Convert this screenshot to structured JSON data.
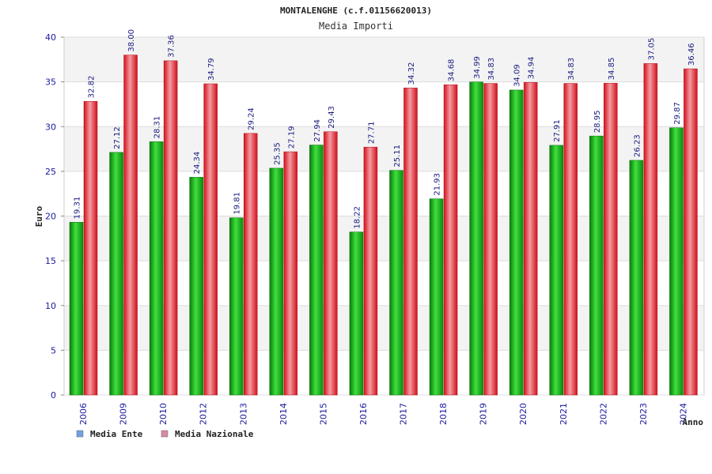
{
  "chart_data": {
    "type": "bar",
    "title": "MONTALENGHE (c.f.01156620013)",
    "subtitle": "Media Importi",
    "xlabel": "Anno",
    "ylabel": "Euro",
    "ylim": [
      0,
      40
    ],
    "yticks": [
      0,
      5,
      10,
      15,
      20,
      25,
      30,
      35,
      40
    ],
    "grid": true,
    "legend_position": "bottom-left",
    "categories": [
      "2006",
      "2009",
      "2010",
      "2012",
      "2013",
      "2014",
      "2015",
      "2016",
      "2017",
      "2018",
      "2019",
      "2020",
      "2021",
      "2022",
      "2023",
      "2024"
    ],
    "series": [
      {
        "name": "Media Ente",
        "bar_color": "#1db31d",
        "legend_color": "#6fa0e8",
        "values": [
          19.31,
          27.12,
          28.31,
          24.34,
          19.81,
          25.35,
          27.94,
          18.22,
          25.11,
          21.93,
          34.99,
          34.09,
          27.91,
          28.95,
          26.23,
          29.87
        ],
        "labels": [
          "19.31",
          "27.12",
          "28.31",
          "24.34",
          "19.81",
          "25.35",
          "27.94",
          "18.22",
          "25.11",
          "21.93",
          "34.99",
          "34.09",
          "27.91",
          "28.95",
          "26.23",
          "29.87"
        ]
      },
      {
        "name": "Media Nazionale",
        "bar_color": "#e8202a",
        "legend_color": "#d98aa8",
        "values": [
          32.82,
          38.0,
          37.36,
          34.79,
          29.24,
          27.19,
          29.43,
          27.71,
          34.32,
          34.68,
          34.83,
          34.94,
          34.83,
          34.85,
          37.05,
          36.46
        ],
        "labels": [
          "32.82",
          "38.00",
          "37.36",
          "34.79",
          "29.24",
          "27.19",
          "29.43",
          "27.71",
          "34.32",
          "34.68",
          "34.83",
          "34.94",
          "34.83",
          "34.85",
          "37.05",
          "36.46"
        ]
      }
    ]
  }
}
